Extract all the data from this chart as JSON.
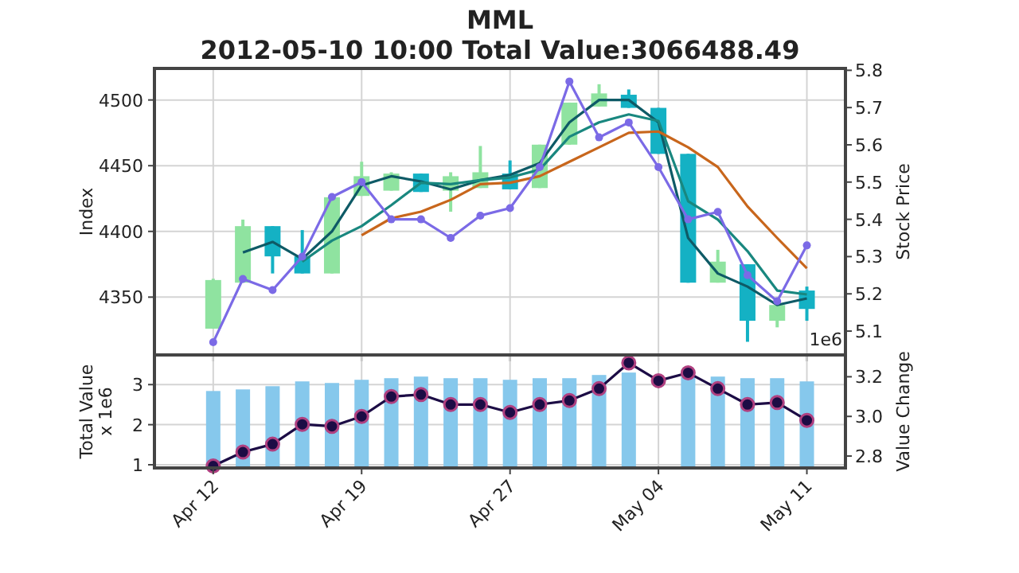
{
  "chart_data": [
    {
      "type": "candlestick",
      "title": "MML",
      "subtitle": "2012-05-10 10:00 Total Value:3066488.49",
      "ylabel": "Index",
      "y2label": "Stock Price",
      "grid": true,
      "tick_labels": "y",
      "categories": [
        null,
        null,
        null,
        null,
        null,
        null,
        null,
        null,
        null,
        null,
        null,
        null,
        null,
        null,
        null,
        null,
        null,
        null,
        null,
        null,
        null
      ],
      "ohlc": [
        [
          4326,
          4364,
          4326,
          4363
        ],
        [
          4361,
          4409,
          4361,
          4404
        ],
        [
          4404,
          4404,
          4368,
          4381
        ],
        [
          4381,
          4401,
          4368,
          4368
        ],
        [
          4368,
          4426,
          4368,
          4426
        ],
        [
          4427,
          4453,
          4427,
          4442
        ],
        [
          4431,
          4445,
          4431,
          4444
        ],
        [
          4444,
          4444,
          4430,
          4430
        ],
        [
          4431,
          4445,
          4415,
          4442
        ],
        [
          4433,
          4465,
          4433,
          4445
        ],
        [
          4444,
          4454,
          4432,
          4432
        ],
        [
          4433,
          4466,
          4433,
          4466
        ],
        [
          4466,
          4498,
          4466,
          4498
        ],
        [
          4495,
          4512,
          4495,
          4505
        ],
        [
          4504,
          4508,
          4494,
          4494
        ],
        [
          4494,
          4494,
          4459,
          4459
        ],
        [
          4459,
          4459,
          4361,
          4361
        ],
        [
          4361,
          4386,
          4361,
          4377
        ],
        [
          4375,
          4375,
          4316,
          4332
        ],
        [
          4332,
          4344,
          4327,
          4344
        ],
        [
          4355,
          4358,
          4332,
          4341
        ]
      ],
      "colors": [
        "#8fe3a0",
        "#8fe3a0",
        "#14b1c4",
        "#14b1c4",
        "#8fe3a0",
        "#8fe3a0",
        "#8fe3a0",
        "#14b1c4",
        "#8fe3a0",
        "#8fe3a0",
        "#14b1c4",
        "#8fe3a0",
        "#8fe3a0",
        "#8fe3a0",
        "#14b1c4",
        "#14b1c4",
        "#14b1c4",
        "#8fe3a0",
        "#14b1c4",
        "#8fe3a0",
        "#14b1c4"
      ],
      "ylim": [
        4306,
        4524
      ],
      "yticks": [
        4350,
        4400,
        4450,
        4500
      ],
      "y2lim": [
        5.036,
        5.805
      ],
      "y2ticks": [
        5.1,
        5.2,
        5.3,
        5.4,
        5.5,
        5.6,
        5.7,
        5.8
      ],
      "series": [
        {
          "type": "line",
          "color": "#0e5a66",
          "values": [
            null,
            4384,
            4392,
            4379,
            4400,
            4435,
            4442,
            4438,
            4432,
            4439,
            4443,
            4452,
            4483,
            4500,
            4500,
            4483,
            4395,
            4368,
            4358,
            4344,
            4349
          ]
        },
        {
          "type": "line",
          "color": "#19877f",
          "values": [
            null,
            null,
            null,
            4377,
            4393,
            4404,
            4420,
            4437,
            4436,
            4439,
            4441,
            4447,
            4472,
            4483,
            4489,
            4484,
            4423,
            4409,
            4385,
            4355,
            4352
          ]
        },
        {
          "type": "line",
          "color": "#c8661c",
          "values": [
            null,
            null,
            null,
            null,
            null,
            4397,
            4410,
            4415,
            4424,
            4436,
            4437,
            4442,
            4453,
            4464,
            4475,
            4476,
            4464,
            4449,
            4419,
            4395,
            4372
          ]
        },
        {
          "type": "line",
          "axis": "y2",
          "marker": "circle",
          "color": "#7b6ae6",
          "values": [
            5.07,
            5.24,
            5.21,
            5.3,
            5.46,
            5.5,
            5.4,
            5.4,
            5.35,
            5.41,
            5.43,
            5.54,
            5.77,
            5.62,
            5.66,
            5.54,
            5.4,
            5.42,
            5.25,
            5.18,
            5.33
          ]
        }
      ]
    },
    {
      "type": "bar",
      "ylabel": "Total Value\nx 1e6",
      "y2label": "Value Change",
      "grid": true,
      "color": "#86c8ec",
      "annotations": [
        "1e6"
      ],
      "categories": [
        "Apr 12",
        null,
        null,
        null,
        null,
        "Apr 19",
        null,
        null,
        null,
        null,
        "Apr 27",
        null,
        null,
        null,
        null,
        "May 04",
        null,
        null,
        null,
        null,
        "May 11"
      ],
      "values": [
        2.84,
        2.88,
        2.96,
        3.08,
        3.04,
        3.12,
        3.16,
        3.2,
        3.16,
        3.16,
        3.12,
        3.16,
        3.16,
        3.24,
        3.3,
        null,
        3.2,
        3.2,
        3.16,
        3.16,
        3.08
      ],
      "ylim": [
        0.92,
        3.74
      ],
      "yticks": [
        1,
        2,
        3
      ],
      "y2lim": [
        2.74,
        3.31
      ],
      "y2ticks": [
        2.8,
        {
          "value": 3,
          "label": "3.0"
        },
        3.2
      ],
      "series": [
        {
          "type": "line",
          "axis": "y2",
          "marker": "circle",
          "color": "#1c0c45",
          "values": [
            2.75,
            2.82,
            2.86,
            2.96,
            2.95,
            3.0,
            3.1,
            3.11,
            3.06,
            3.06,
            3.02,
            3.06,
            3.08,
            3.14,
            3.27,
            3.18,
            3.22,
            3.14,
            3.06,
            3.07,
            2.98
          ]
        }
      ]
    }
  ]
}
